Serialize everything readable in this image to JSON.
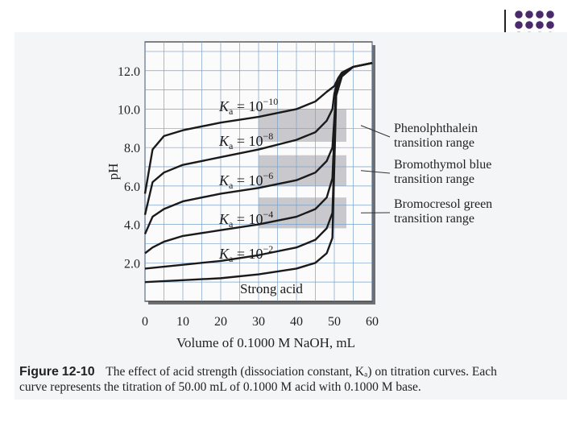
{
  "slide_decoration": {
    "dot_colors": [
      "#4b2a6b",
      "#4b2a6b",
      "#4b2a6b",
      "#4b2a6b",
      "#4b2a6b",
      "#4b2a6b",
      "#4b2a6b",
      "#4b2a6b",
      "#9b9b9b",
      "#c8b94a",
      "#c8b94a",
      "#c8b94a"
    ]
  },
  "chart_data": {
    "type": "line",
    "title": "",
    "xlabel": "Volume of 0.1000 M NaOH, mL",
    "ylabel": "pH",
    "xlim": [
      0,
      60
    ],
    "ylim": [
      0,
      13.5
    ],
    "grid": true,
    "x_ticks": [
      "0",
      "10",
      "20",
      "30",
      "40",
      "50",
      "60"
    ],
    "y_ticks": [
      "2.0",
      "4.0",
      "6.0",
      "8.0",
      "10.0",
      "12.0"
    ],
    "series": [
      {
        "name": "Ka = 10^-10",
        "label_base": "K",
        "label_sub": "a",
        "label_mid": " = 10",
        "label_exp": "−10",
        "points": [
          [
            0,
            5.6
          ],
          [
            2,
            7.9
          ],
          [
            5,
            8.6
          ],
          [
            10,
            8.9
          ],
          [
            20,
            9.3
          ],
          [
            30,
            9.6
          ],
          [
            40,
            10.0
          ],
          [
            45,
            10.4
          ],
          [
            48,
            10.9
          ],
          [
            50,
            11.2
          ],
          [
            51,
            11.6
          ],
          [
            52,
            11.9
          ],
          [
            55,
            12.2
          ],
          [
            60,
            12.4
          ]
        ]
      },
      {
        "name": "Ka = 10^-8",
        "label_base": "K",
        "label_sub": "a",
        "label_mid": " = 10",
        "label_exp": "−8",
        "points": [
          [
            0,
            4.5
          ],
          [
            2,
            6.2
          ],
          [
            5,
            6.7
          ],
          [
            10,
            7.1
          ],
          [
            20,
            7.5
          ],
          [
            30,
            7.9
          ],
          [
            40,
            8.4
          ],
          [
            45,
            8.8
          ],
          [
            48,
            9.4
          ],
          [
            49.5,
            10.0
          ],
          [
            50,
            10.8
          ],
          [
            51,
            11.6
          ],
          [
            52,
            11.9
          ],
          [
            55,
            12.2
          ],
          [
            60,
            12.4
          ]
        ]
      },
      {
        "name": "Ka = 10^-6",
        "label_base": "K",
        "label_sub": "a",
        "label_mid": " = 10",
        "label_exp": "−6",
        "points": [
          [
            0,
            3.5
          ],
          [
            2,
            4.4
          ],
          [
            5,
            4.8
          ],
          [
            10,
            5.2
          ],
          [
            20,
            5.6
          ],
          [
            30,
            5.9
          ],
          [
            40,
            6.3
          ],
          [
            45,
            6.7
          ],
          [
            48,
            7.3
          ],
          [
            49.5,
            8.0
          ],
          [
            50,
            9.5
          ],
          [
            50.5,
            11.0
          ],
          [
            52,
            11.8
          ],
          [
            55,
            12.2
          ],
          [
            60,
            12.4
          ]
        ]
      },
      {
        "name": "Ka = 10^-4",
        "label_base": "K",
        "label_sub": "a",
        "label_mid": " = 10",
        "label_exp": "−4",
        "points": [
          [
            0,
            2.5
          ],
          [
            2,
            2.8
          ],
          [
            5,
            3.1
          ],
          [
            10,
            3.4
          ],
          [
            20,
            3.7
          ],
          [
            30,
            4.0
          ],
          [
            40,
            4.4
          ],
          [
            45,
            4.8
          ],
          [
            48,
            5.4
          ],
          [
            49.5,
            6.4
          ],
          [
            50,
            8.7
          ],
          [
            50.5,
            11.0
          ],
          [
            52,
            11.8
          ],
          [
            55,
            12.2
          ],
          [
            60,
            12.4
          ]
        ]
      },
      {
        "name": "Ka = 10^-2",
        "label_base": "K",
        "label_sub": "a",
        "label_mid": " = 10",
        "label_exp": "−2",
        "points": [
          [
            0,
            1.7
          ],
          [
            5,
            1.8
          ],
          [
            10,
            1.9
          ],
          [
            20,
            2.1
          ],
          [
            30,
            2.4
          ],
          [
            40,
            2.8
          ],
          [
            45,
            3.2
          ],
          [
            48,
            3.8
          ],
          [
            49.5,
            4.6
          ],
          [
            50,
            7.5
          ],
          [
            50.5,
            11.0
          ],
          [
            52,
            11.8
          ],
          [
            55,
            12.2
          ],
          [
            60,
            12.4
          ]
        ]
      },
      {
        "name": "Strong acid",
        "label": "Strong acid",
        "points": [
          [
            0,
            1.0
          ],
          [
            10,
            1.1
          ],
          [
            20,
            1.2
          ],
          [
            30,
            1.4
          ],
          [
            40,
            1.7
          ],
          [
            45,
            2.0
          ],
          [
            48,
            2.5
          ],
          [
            49.5,
            3.3
          ],
          [
            50,
            7.0
          ],
          [
            50.5,
            10.7
          ],
          [
            52,
            11.7
          ],
          [
            55,
            12.2
          ],
          [
            60,
            12.4
          ]
        ]
      }
    ],
    "indicator_ranges": [
      {
        "label_line1": "Phenolphthalein",
        "label_line2": "transition range",
        "ph_low": 8.3,
        "ph_high": 10.0
      },
      {
        "label_line1": "Bromothymol blue",
        "label_line2": "transition range",
        "ph_low": 6.0,
        "ph_high": 7.6
      },
      {
        "label_line1": "Bromocresol green",
        "label_line2": "transition range",
        "ph_low": 3.8,
        "ph_high": 5.4
      }
    ]
  },
  "caption": {
    "figure_word": "Figure",
    "figure_number": "12-10",
    "text_line1": "The effect of acid strength (dissociation constant, Kₐ) on titration curves. Each",
    "text_line2": "curve represents the titration of 50.00 mL of 0.1000 M acid with 0.1000 M base."
  }
}
